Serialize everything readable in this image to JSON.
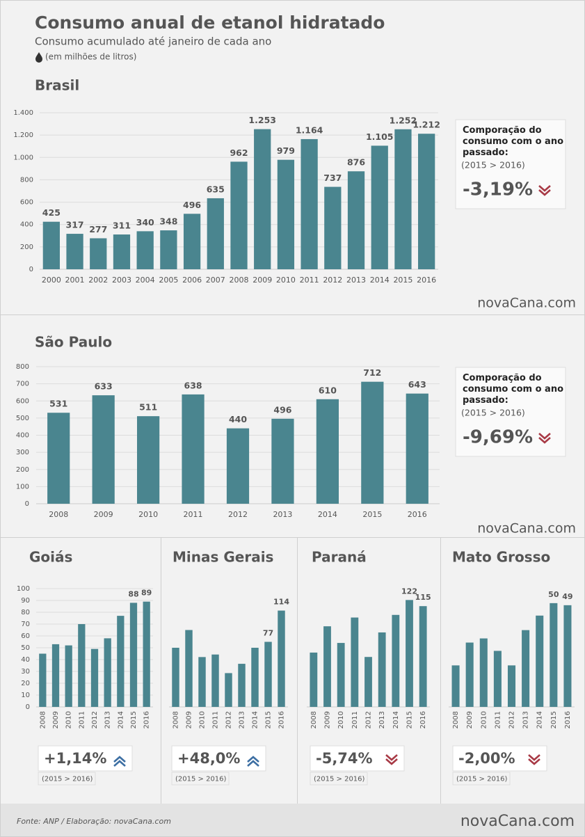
{
  "title": "Consumo anual de etanol hidratado",
  "subtitle": "Consumo acumulado até janeiro de cada ano",
  "unit_note": "(em milhões de litros)",
  "chart_data": [
    {
      "type": "bar",
      "title": "Brasil",
      "categories": [
        "2000",
        "2001",
        "2002",
        "2003",
        "2004",
        "2005",
        "2006",
        "2007",
        "2008",
        "2009",
        "2010",
        "2011",
        "2012",
        "2013",
        "2014",
        "2015",
        "2016"
      ],
      "values": [
        425,
        317,
        277,
        311,
        340,
        348,
        496,
        635,
        962,
        1253,
        979,
        1164,
        737,
        876,
        1105,
        1252,
        1212
      ],
      "value_labels": [
        "425",
        "317",
        "277",
        "311",
        "340",
        "348",
        "496",
        "635",
        "962",
        "1.253",
        "979",
        "1.164",
        "737",
        "876",
        "1.105",
        "1.252",
        "1.212"
      ],
      "ylim": [
        0,
        1400
      ],
      "yticks": [
        0,
        200,
        400,
        600,
        800,
        {
          "value": 1000,
          "label": "1.000"
        },
        {
          "value": 1200,
          "label": "1.200"
        },
        {
          "value": 1400,
          "label": "1.400"
        }
      ],
      "grid": true,
      "color": "#4a858f",
      "comparison": {
        "label": "Comporação do consumo com o ano passado:",
        "period": "(2015 > 2016)",
        "value": "-3,19%",
        "trend": "down"
      }
    },
    {
      "type": "bar",
      "title": "São Paulo",
      "categories": [
        "2008",
        "2009",
        "2010",
        "2011",
        "2012",
        "2013",
        "2014",
        "2015",
        "2016"
      ],
      "values": [
        531,
        633,
        511,
        638,
        440,
        496,
        610,
        712,
        643
      ],
      "ylim": [
        0,
        800
      ],
      "yticks": [
        0,
        100,
        200,
        300,
        400,
        500,
        600,
        700,
        800
      ],
      "grid": true,
      "color": "#4a858f",
      "comparison": {
        "label": "Comporação do consumo com o ano passado:",
        "period": "(2015 > 2016)",
        "value": "-9,69%",
        "trend": "down"
      }
    },
    {
      "type": "bar",
      "title": "Goiás",
      "categories": [
        "2008",
        "2009",
        "2010",
        "2011",
        "2012",
        "2013",
        "2014",
        "2015",
        "2016"
      ],
      "values": [
        45,
        53,
        52,
        70,
        49,
        58,
        77,
        88,
        89
      ],
      "value_labels": [
        null,
        null,
        null,
        null,
        null,
        null,
        null,
        "88",
        "89"
      ],
      "ylim": [
        0,
        100
      ],
      "yticks": [
        0,
        10,
        20,
        30,
        40,
        50,
        60,
        70,
        80,
        90,
        100
      ],
      "grid": true,
      "color": "#4a858f",
      "comparison": {
        "period": "(2015 > 2016)",
        "value": "+1,14%",
        "trend": "up"
      }
    },
    {
      "type": "bar",
      "title": "Minas Gerais",
      "categories": [
        "2008",
        "2009",
        "2010",
        "2011",
        "2012",
        "2013",
        "2014",
        "2015",
        "2016"
      ],
      "values": [
        70,
        91,
        59,
        62,
        40,
        51,
        70,
        77,
        114
      ],
      "value_labels": [
        null,
        null,
        null,
        null,
        null,
        null,
        null,
        "77",
        "114"
      ],
      "ylim": [
        0,
        140
      ],
      "grid": false,
      "color": "#4a858f",
      "comparison": {
        "period": "(2015 > 2016)",
        "value": "+48,0%",
        "trend": "up"
      }
    },
    {
      "type": "bar",
      "title": "Paraná",
      "categories": [
        "2008",
        "2009",
        "2010",
        "2011",
        "2012",
        "2013",
        "2014",
        "2015",
        "2016"
      ],
      "values": [
        62,
        92,
        73,
        102,
        57,
        85,
        105,
        122,
        115
      ],
      "value_labels": [
        null,
        null,
        null,
        null,
        null,
        null,
        null,
        "122",
        "115"
      ],
      "ylim": [
        0,
        135
      ],
      "grid": false,
      "color": "#4a858f",
      "comparison": {
        "period": "(2015 > 2016)",
        "value": "-5,74%",
        "trend": "down"
      }
    },
    {
      "type": "bar",
      "title": "Mato Grosso",
      "categories": [
        "2008",
        "2009",
        "2010",
        "2011",
        "2012",
        "2013",
        "2014",
        "2015",
        "2016"
      ],
      "values": [
        20,
        31,
        33,
        27,
        20,
        37,
        44,
        50,
        49
      ],
      "value_labels": [
        null,
        null,
        null,
        null,
        null,
        null,
        null,
        "50",
        "49"
      ],
      "ylim": [
        0,
        57
      ],
      "grid": false,
      "color": "#4a858f",
      "comparison": {
        "period": "(2015 > 2016)",
        "value": "-2,00%",
        "trend": "down"
      }
    }
  ],
  "source": "Fonte: ANP  / Elaboração: novaCana.com",
  "brand": "novaCana.com"
}
